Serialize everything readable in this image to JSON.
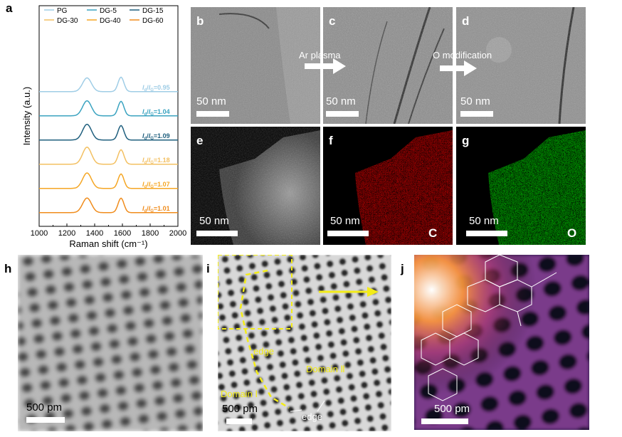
{
  "panels": {
    "a": "a",
    "b": "b",
    "c": "c",
    "d": "d",
    "e": "e",
    "f": "f",
    "g": "g",
    "h": "h",
    "i": "i",
    "j": "j"
  },
  "chart_data": {
    "type": "line",
    "xlabel": "Raman shift (cm⁻¹)",
    "ylabel": "Intensity (a.u.)",
    "xlim": [
      1000,
      2000
    ],
    "xticks": [
      "1000",
      "1200",
      "1400",
      "1600",
      "1800",
      "2000"
    ],
    "legend": [
      {
        "name": "PG",
        "color": "#9fcde6"
      },
      {
        "name": "DG-5",
        "color": "#3aa3c0"
      },
      {
        "name": "DG-15",
        "color": "#1f5f7e"
      },
      {
        "name": "DG-30",
        "color": "#f3c062"
      },
      {
        "name": "DG-40",
        "color": "#f5a623"
      },
      {
        "name": "DG-60",
        "color": "#f08c1c"
      }
    ],
    "series": [
      {
        "name": "PG",
        "ratio": "=0.95",
        "color": "#9fcde6",
        "offset": 5,
        "d_height": 0.95
      },
      {
        "name": "DG-5",
        "ratio": "=1.04",
        "color": "#3aa3c0",
        "offset": 4,
        "d_height": 1.04
      },
      {
        "name": "DG-15",
        "ratio": "=1.09",
        "color": "#1f5f7e",
        "offset": 3,
        "d_height": 1.09
      },
      {
        "name": "DG-30",
        "ratio": "=1.18",
        "color": "#f3c062",
        "offset": 2,
        "d_height": 1.18
      },
      {
        "name": "DG-40",
        "ratio": "=1.07",
        "color": "#f5a623",
        "offset": 1,
        "d_height": 1.07
      },
      {
        "name": "DG-60",
        "ratio": "=1.01",
        "color": "#f08c1c",
        "offset": 0,
        "d_height": 1.01
      }
    ]
  },
  "images": {
    "b": {
      "scale": "50 nm",
      "arrow": "Ar plasma"
    },
    "c": {
      "scale": "50 nm",
      "arrow": "O modification"
    },
    "d": {
      "scale": "50 nm"
    },
    "e": {
      "scale": "50 nm"
    },
    "f": {
      "scale": "50 nm",
      "element": "C",
      "color": "#d01515"
    },
    "g": {
      "scale": "50 nm",
      "element": "O",
      "color": "#20c020"
    },
    "h": {
      "scale": "500 pm"
    },
    "i": {
      "scale": "500 pm",
      "edge_top": "edge",
      "edge_bottom": "edge",
      "domain1": "Domain Ⅰ",
      "domain2": "Domain Ⅱ"
    },
    "j": {
      "scale": "500 pm"
    }
  }
}
